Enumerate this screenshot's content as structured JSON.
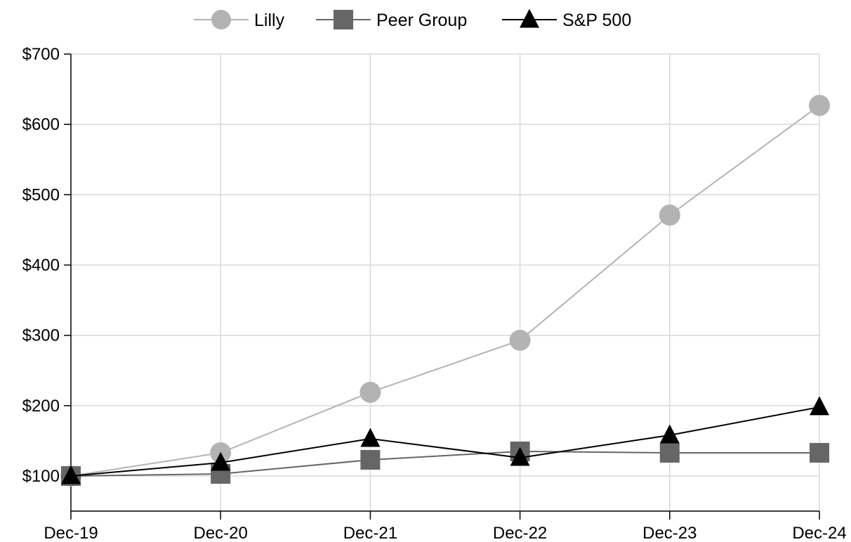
{
  "chart_data": {
    "type": "line",
    "title": "",
    "xlabel": "",
    "ylabel": "",
    "categories": [
      "Dec-19",
      "Dec-20",
      "Dec-21",
      "Dec-22",
      "Dec-23",
      "Dec-24"
    ],
    "ylim": [
      50,
      700
    ],
    "yticks": [
      100,
      200,
      300,
      400,
      500,
      600,
      700
    ],
    "ytick_labels": [
      "$100",
      "$200",
      "$300",
      "$400",
      "$500",
      "$600",
      "$700"
    ],
    "grid": true,
    "legend_position": "top-center",
    "series": [
      {
        "name": "Lilly",
        "marker": "circle",
        "color": "#b3b3b3",
        "values": [
          100,
          133,
          219,
          293,
          471,
          627
        ]
      },
      {
        "name": "Peer Group",
        "marker": "square",
        "color": "#666666",
        "values": [
          100,
          103,
          123,
          135,
          133,
          133
        ]
      },
      {
        "name": "S&P 500",
        "marker": "triangle",
        "color": "#000000",
        "values": [
          100,
          119,
          153,
          126,
          158,
          198
        ]
      }
    ]
  }
}
